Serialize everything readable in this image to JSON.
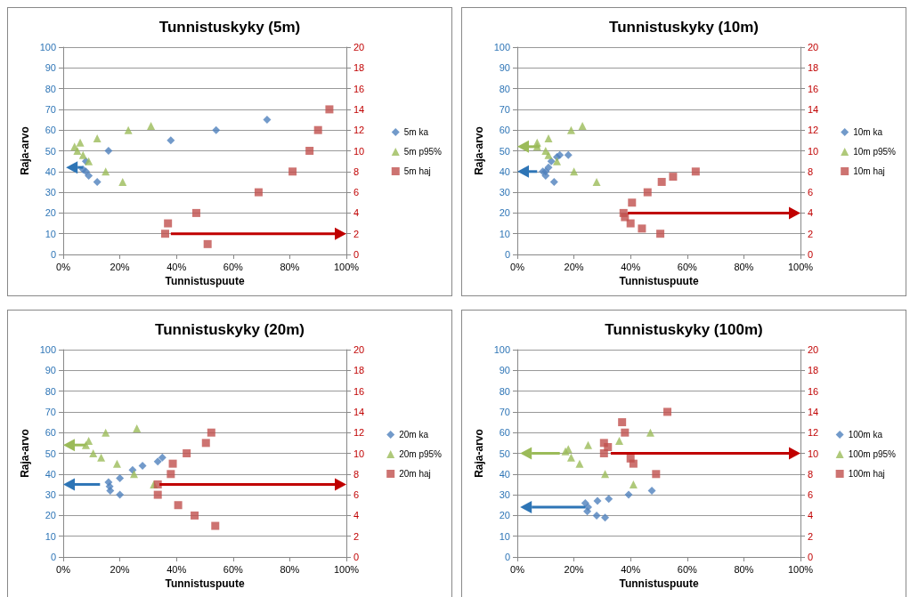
{
  "chart_data": [
    {
      "type": "scatter",
      "title": "Tunnistuskyky (5m)",
      "xlabel": "Tunnistuspuute",
      "ylabel": "Raja-arvo",
      "legend": "right",
      "grid": "y",
      "xlim": [
        0,
        100
      ],
      "xticks": [
        {
          "value": 0,
          "label": "0%"
        },
        {
          "value": 20,
          "label": "20%"
        },
        {
          "value": 40,
          "label": "40%"
        },
        {
          "value": 60,
          "label": "60%"
        },
        {
          "value": 80,
          "label": "80%"
        },
        {
          "value": 100,
          "label": "100%"
        }
      ],
      "ylim": [
        0,
        100
      ],
      "yticks": [
        0,
        10,
        20,
        30,
        40,
        50,
        60,
        70,
        80,
        90,
        100
      ],
      "y2lim": [
        0,
        20
      ],
      "y2ticks": [
        0,
        2,
        4,
        6,
        8,
        10,
        12,
        14,
        16,
        18,
        20
      ],
      "series": [
        {
          "name": "5m ka",
          "marker": "diamond",
          "color": "#4f81bd",
          "x": [
            8,
            7,
            8,
            9,
            12,
            16,
            38,
            54,
            72
          ],
          "values": [
            45,
            41,
            40,
            38,
            35,
            50,
            55,
            60,
            65
          ]
        },
        {
          "name": "5m p95%",
          "marker": "triangle",
          "color": "#9bbb59",
          "x": [
            4,
            6,
            5,
            7,
            9,
            12,
            15,
            21,
            23,
            31
          ],
          "values": [
            52,
            54,
            50,
            48,
            45,
            56,
            40,
            35,
            60,
            62
          ]
        },
        {
          "name": "5m haj",
          "marker": "square",
          "axis": "y2",
          "color": "#c0504d",
          "x": [
            36,
            37,
            47,
            51,
            69,
            81,
            87,
            90,
            94
          ],
          "values": [
            2,
            3,
            4,
            1,
            6,
            8,
            10,
            12,
            14
          ]
        }
      ]
    },
    {
      "type": "scatter",
      "title": "Tunnistuskyky (10m)",
      "xlabel": "Tunnistuspuute",
      "ylabel": "Raja-arvo",
      "legend": "right",
      "grid": "y",
      "xlim": [
        0,
        100
      ],
      "xticks": [
        {
          "value": 0,
          "label": "0%"
        },
        {
          "value": 20,
          "label": "20%"
        },
        {
          "value": 40,
          "label": "40%"
        },
        {
          "value": 60,
          "label": "60%"
        },
        {
          "value": 80,
          "label": "80%"
        },
        {
          "value": 100,
          "label": "100%"
        }
      ],
      "ylim": [
        0,
        100
      ],
      "yticks": [
        0,
        10,
        20,
        30,
        40,
        50,
        60,
        70,
        80,
        90,
        100
      ],
      "y2lim": [
        0,
        20
      ],
      "y2ticks": [
        0,
        2,
        4,
        6,
        8,
        10,
        12,
        14,
        16,
        18,
        20
      ],
      "series": [
        {
          "name": "10m ka",
          "marker": "diamond",
          "color": "#4f81bd",
          "x": [
            9,
            10,
            10,
            11,
            12,
            13,
            14,
            15,
            18
          ],
          "values": [
            40,
            38,
            40,
            42,
            45,
            35,
            47,
            48,
            48
          ]
        },
        {
          "name": "10m p95%",
          "marker": "triangle",
          "color": "#9bbb59",
          "x": [
            7,
            7,
            10,
            11,
            11,
            14,
            19,
            20,
            23,
            28
          ],
          "values": [
            54,
            52,
            50,
            56,
            48,
            45,
            60,
            40,
            62,
            35
          ]
        },
        {
          "name": "10m haj",
          "marker": "square",
          "axis": "y2",
          "color": "#c0504d",
          "x": [
            37.5,
            38,
            40,
            40.5,
            44,
            46,
            50.5,
            51,
            55,
            63
          ],
          "values": [
            4,
            3.6,
            3,
            5,
            2.5,
            6,
            2,
            7,
            7.5,
            8
          ]
        }
      ]
    },
    {
      "type": "scatter",
      "title": "Tunnistuskyky (20m)",
      "xlabel": "Tunnistuspuute",
      "ylabel": "Raja-arvo",
      "legend": "right",
      "grid": "y",
      "xlim": [
        0,
        100
      ],
      "xticks": [
        {
          "value": 0,
          "label": "0%"
        },
        {
          "value": 20,
          "label": "20%"
        },
        {
          "value": 40,
          "label": "40%"
        },
        {
          "value": 60,
          "label": "60%"
        },
        {
          "value": 80,
          "label": "80%"
        },
        {
          "value": 100,
          "label": "100%"
        }
      ],
      "ylim": [
        0,
        100
      ],
      "yticks": [
        0,
        10,
        20,
        30,
        40,
        50,
        60,
        70,
        80,
        90,
        100
      ],
      "y2lim": [
        0,
        20
      ],
      "y2ticks": [
        0,
        2,
        4,
        6,
        8,
        10,
        12,
        14,
        16,
        18,
        20
      ],
      "series": [
        {
          "name": "20m ka",
          "marker": "diamond",
          "color": "#4f81bd",
          "x": [
            16,
            16.4,
            16.6,
            20,
            20,
            24.5,
            28,
            33.4,
            35
          ],
          "values": [
            36,
            34,
            32,
            38,
            30,
            42,
            44,
            46,
            48
          ]
        },
        {
          "name": "20m p95%",
          "marker": "triangle",
          "color": "#9bbb59",
          "x": [
            8,
            9,
            10.6,
            13.4,
            15,
            19,
            25,
            26,
            32
          ],
          "values": [
            54,
            56,
            50,
            48,
            60,
            45,
            40,
            62,
            35
          ]
        },
        {
          "name": "20m haj",
          "marker": "square",
          "axis": "y2",
          "color": "#c0504d",
          "x": [
            33.4,
            33.4,
            38,
            38.7,
            40.6,
            43.6,
            46.4,
            50.4,
            52.3,
            53.7
          ],
          "values": [
            7,
            6,
            8,
            9,
            5,
            10,
            4,
            11,
            12,
            3
          ]
        }
      ]
    },
    {
      "type": "scatter",
      "title": "Tunnistuskyky (100m)",
      "xlabel": "Tunnistuspuute",
      "ylabel": "Raja-arvo",
      "legend": "right",
      "grid": "y",
      "xlim": [
        0,
        100
      ],
      "xticks": [
        {
          "value": 0,
          "label": "0%"
        },
        {
          "value": 20,
          "label": "20%"
        },
        {
          "value": 40,
          "label": "40%"
        },
        {
          "value": 60,
          "label": "60%"
        },
        {
          "value": 80,
          "label": "80%"
        },
        {
          "value": 100,
          "label": "100%"
        }
      ],
      "ylim": [
        0,
        100
      ],
      "yticks": [
        0,
        10,
        20,
        30,
        40,
        50,
        60,
        70,
        80,
        90,
        100
      ],
      "y2lim": [
        0,
        20
      ],
      "y2ticks": [
        0,
        2,
        4,
        6,
        8,
        10,
        12,
        14,
        16,
        18,
        20
      ],
      "series": [
        {
          "name": "100m ka",
          "marker": "diamond",
          "color": "#4f81bd",
          "x": [
            24,
            25,
            24.7,
            28,
            28.3,
            31,
            32.3,
            39.3,
            47.5
          ],
          "values": [
            26,
            24,
            22,
            20,
            27,
            19,
            28,
            30,
            32
          ]
        },
        {
          "name": "100m p95%",
          "marker": "triangle",
          "color": "#9bbb59",
          "x": [
            17,
            18,
            19,
            22,
            25,
            31,
            36,
            41,
            47
          ],
          "values": [
            51,
            52,
            48,
            45,
            54,
            40,
            56,
            35,
            60
          ]
        },
        {
          "name": "100m haj",
          "marker": "square",
          "axis": "y2",
          "color": "#c0504d",
          "x": [
            30.6,
            30.6,
            32,
            37,
            38,
            40,
            41,
            49,
            53
          ],
          "values": [
            11,
            10,
            10.6,
            13,
            12,
            9.5,
            9,
            8,
            14
          ]
        }
      ]
    }
  ]
}
